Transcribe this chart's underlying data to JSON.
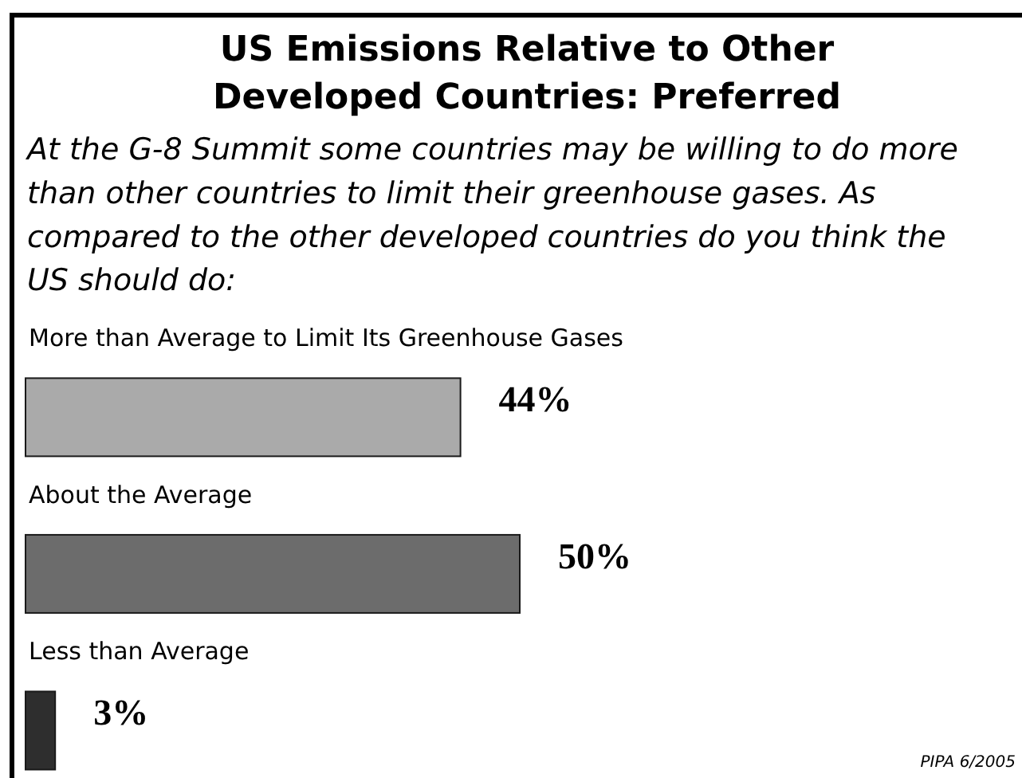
{
  "chart_data": {
    "type": "bar",
    "orientation": "horizontal",
    "title": "US Emissions Relative to Other Developed Countries: Preferred",
    "subtitle": "At the G-8 Summit some countries may be willing to do more than other countries to limit their greenhouse gases. As compared to the other developed countries do you think the US should do:",
    "categories": [
      "More than Average to Limit Its Greenhouse Gases",
      "About the Average",
      "Less than Average"
    ],
    "values": [
      44,
      50,
      3
    ],
    "colors": [
      "#aaaaaa",
      "#6c6c6c",
      "#2e2e2e"
    ],
    "value_labels": [
      "44%",
      "50%",
      "3%"
    ],
    "tick_labels": "y",
    "annotations": [
      "PIPA 6/2005"
    ]
  }
}
